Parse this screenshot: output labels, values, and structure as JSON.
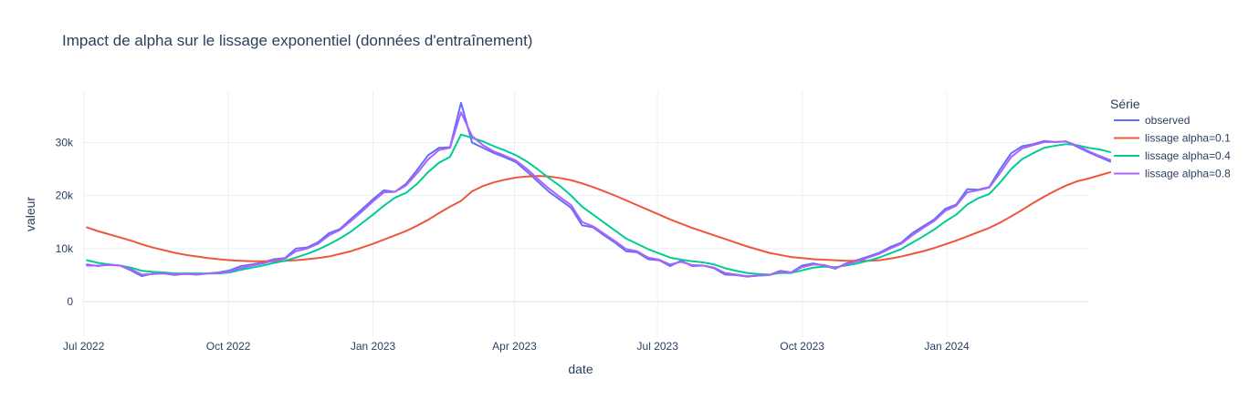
{
  "chart_data": {
    "type": "line",
    "title": "Impact de alpha sur le lissage exponentiel (données d'entraînement)",
    "xlabel": "date",
    "ylabel": "valeur",
    "x_start": "2022-07-03",
    "x_freq": "weekly",
    "xlim": [
      "2022-06-30",
      "2024-03-31"
    ],
    "ylim": [
      -6700,
      39700
    ],
    "x_ticks": [
      {
        "date": "2022-07-01",
        "label": "Jul 2022"
      },
      {
        "date": "2022-10-01",
        "label": "Oct 2022"
      },
      {
        "date": "2023-01-01",
        "label": "Jan 2023"
      },
      {
        "date": "2023-04-01",
        "label": "Apr 2023"
      },
      {
        "date": "2023-07-01",
        "label": "Jul 2023"
      },
      {
        "date": "2023-10-01",
        "label": "Oct 2023"
      },
      {
        "date": "2024-01-01",
        "label": "Jan 2024"
      }
    ],
    "y_ticks": [
      {
        "value": 0,
        "label": "0"
      },
      {
        "value": 10000,
        "label": "10k"
      },
      {
        "value": 20000,
        "label": "20k"
      },
      {
        "value": 30000,
        "label": "30k"
      }
    ],
    "grid": true,
    "legend_title": "Série",
    "legend_position": "right",
    "series": [
      {
        "name": "observed",
        "color": "#636efa",
        "values": [
          7000,
          6700,
          7000,
          6800,
          5900,
          4800,
          5300,
          5300,
          5000,
          5300,
          5100,
          5300,
          5500,
          5900,
          6700,
          7000,
          7400,
          8000,
          8200,
          10000,
          10200,
          11200,
          12900,
          13700,
          15600,
          17400,
          19300,
          21000,
          20700,
          22200,
          24800,
          27600,
          29000,
          29100,
          37500,
          30000,
          29000,
          28000,
          27200,
          26300,
          24500,
          22600,
          20700,
          19200,
          17700,
          14400,
          14000,
          12500,
          11100,
          9500,
          9300,
          8000,
          7800,
          6700,
          7700,
          6700,
          6800,
          6300,
          5100,
          5000,
          4700,
          4900,
          5000,
          5800,
          5500,
          6800,
          7200,
          6800,
          6200,
          7200,
          7800,
          8500,
          9200,
          10300,
          11100,
          12900,
          14200,
          15500,
          17500,
          18300,
          21200,
          21100,
          21600,
          25000,
          28000,
          29300,
          29700,
          30300,
          30100,
          30200,
          29200,
          28200,
          27300,
          26400
        ]
      },
      {
        "name": "lissage alpha=0.1",
        "color": "#ef553b",
        "values": [
          14000,
          13300,
          12700,
          12100,
          11500,
          10800,
          10200,
          9700,
          9200,
          8800,
          8500,
          8200,
          8000,
          7800,
          7700,
          7600,
          7600,
          7600,
          7700,
          7800,
          8000,
          8200,
          8500,
          9000,
          9500,
          10200,
          10900,
          11700,
          12500,
          13300,
          14300,
          15400,
          16700,
          17900,
          19000,
          20800,
          21800,
          22500,
          23000,
          23400,
          23600,
          23700,
          23600,
          23300,
          22900,
          22300,
          21600,
          20800,
          20000,
          19100,
          18200,
          17300,
          16400,
          15500,
          14700,
          13900,
          13200,
          12500,
          11800,
          11100,
          10400,
          9800,
          9200,
          8800,
          8400,
          8200,
          8000,
          7900,
          7800,
          7700,
          7700,
          7700,
          7800,
          8100,
          8500,
          9000,
          9500,
          10100,
          10800,
          11500,
          12300,
          13100,
          13900,
          14900,
          16100,
          17300,
          18600,
          19800,
          20900,
          21900,
          22700,
          23200,
          23800,
          24400
        ]
      },
      {
        "name": "lissage alpha=0.4",
        "color": "#00cc96",
        "values": [
          7800,
          7300,
          7000,
          6800,
          6400,
          5800,
          5600,
          5500,
          5300,
          5300,
          5300,
          5300,
          5300,
          5500,
          6000,
          6400,
          6800,
          7300,
          7700,
          8300,
          9000,
          9800,
          10800,
          11900,
          13200,
          14800,
          16400,
          18100,
          19600,
          20500,
          22200,
          24400,
          26200,
          27300,
          31500,
          30900,
          30200,
          29300,
          28500,
          27600,
          26400,
          24900,
          23300,
          21800,
          20000,
          17900,
          16400,
          14900,
          13400,
          11900,
          10900,
          9900,
          9100,
          8300,
          7900,
          7600,
          7400,
          7000,
          6300,
          5800,
          5400,
          5200,
          5100,
          5400,
          5400,
          5900,
          6400,
          6600,
          6500,
          6800,
          7200,
          7700,
          8300,
          9100,
          9900,
          11100,
          12300,
          13600,
          15100,
          16400,
          18300,
          19500,
          20300,
          22500,
          25000,
          26900,
          28000,
          29000,
          29400,
          29700,
          29500,
          29000,
          28700,
          28200
        ]
      },
      {
        "name": "lissage alpha=0.8",
        "color": "#ab63fa",
        "values": [
          6800,
          6800,
          6900,
          6800,
          6100,
          5100,
          5200,
          5300,
          5100,
          5200,
          5100,
          5300,
          5400,
          5700,
          6300,
          6800,
          7200,
          7800,
          8100,
          9500,
          10000,
          10900,
          12500,
          13500,
          15200,
          17000,
          18900,
          20600,
          20700,
          21900,
          24200,
          26800,
          28600,
          29000,
          35700,
          31200,
          29500,
          28300,
          27500,
          26600,
          25000,
          23100,
          21300,
          19700,
          18200,
          15000,
          14200,
          12800,
          11400,
          9900,
          9500,
          8300,
          7900,
          7000,
          7500,
          6900,
          6800,
          6400,
          5400,
          5100,
          4800,
          4900,
          5000,
          5600,
          5500,
          6500,
          7000,
          6900,
          6300,
          7000,
          7600,
          8300,
          9000,
          10000,
          10900,
          12500,
          13900,
          15200,
          17100,
          18100,
          20600,
          21000,
          21500,
          24300,
          27300,
          28900,
          29500,
          30100,
          30100,
          30200,
          29400,
          28400,
          27500,
          26700
        ]
      }
    ]
  }
}
